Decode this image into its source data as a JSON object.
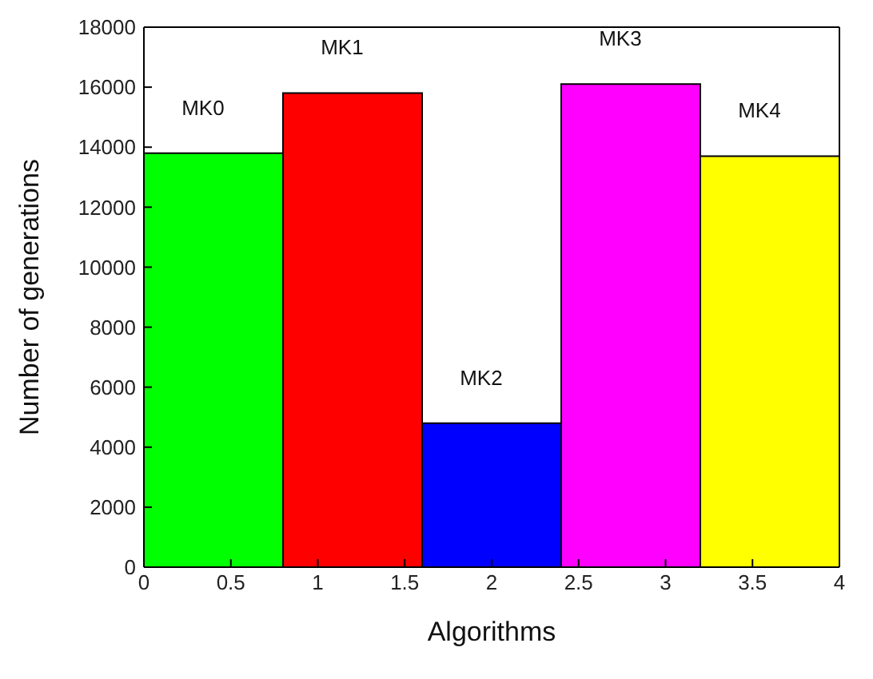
{
  "chart_data": {
    "type": "histogram",
    "xlabel": "Algorithms",
    "ylabel": "Number of generations",
    "bins": [
      0,
      0.8,
      1.6,
      2.4,
      3.2,
      4
    ],
    "values": [
      13800,
      15800,
      4800,
      16100,
      13700
    ],
    "colors": [
      "#00ff00",
      "#ff0000",
      "#0000ff",
      "#ff00ff",
      "#ffff00"
    ],
    "xlim": [
      0,
      4
    ],
    "xticks": [
      0,
      0.5,
      1,
      1.5,
      2,
      2.5,
      3,
      3.5,
      4
    ],
    "ylim": [
      0,
      18000
    ],
    "yticks": [
      0,
      2000,
      4000,
      6000,
      8000,
      10000,
      12000,
      14000,
      16000,
      18000
    ],
    "grid": false,
    "annotations": [
      "MK0",
      "MK1",
      "MK2",
      "MK3",
      "MK4"
    ]
  }
}
